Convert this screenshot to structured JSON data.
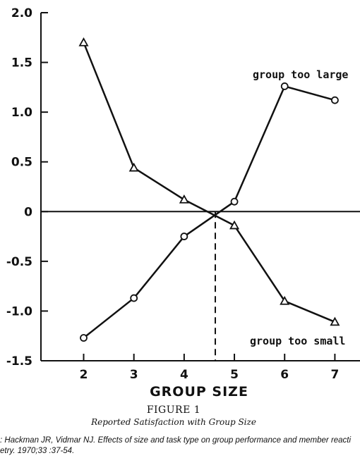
{
  "chart_data": {
    "type": "line",
    "x": [
      2,
      3,
      4,
      5,
      6,
      7
    ],
    "xlabel": "GROUP SIZE",
    "ylabel": "",
    "xlim": [
      1.15,
      7.5
    ],
    "ylim": [
      -1.5,
      2.0
    ],
    "x_ticks": [
      2,
      3,
      4,
      5,
      6,
      7
    ],
    "y_ticks": [
      2.0,
      1.5,
      1.0,
      0.5,
      0,
      -0.5,
      -1.0,
      -1.5
    ],
    "y_tick_labels": [
      "2.0",
      "1.5",
      "1.0",
      "0.5",
      "0",
      "-0.5",
      "-1.0",
      "-1.5"
    ],
    "reference_line_y": 0,
    "crossover_x": 4.62,
    "series": [
      {
        "name": "group too large",
        "marker": "circle",
        "values": [
          -1.27,
          -0.87,
          -0.25,
          0.1,
          1.26,
          1.12
        ]
      },
      {
        "name": "group too small",
        "marker": "triangle",
        "values": [
          1.7,
          0.44,
          0.12,
          -0.14,
          -0.9,
          -1.11
        ]
      }
    ],
    "figure_label": "FIGURE 1",
    "figure_caption": "Reported Satisfaction with Group Size",
    "source_line1": ": Hackman JR, Vidmar NJ. Effects of size and task type on group performance and member reacti",
    "source_line2": "etry. 1970;33 :37-54."
  }
}
